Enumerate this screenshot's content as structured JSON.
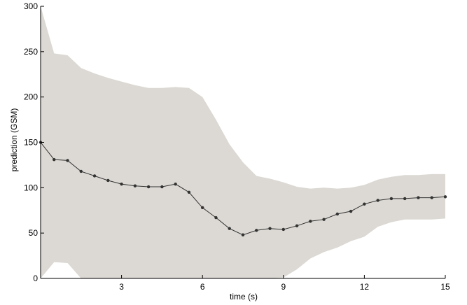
{
  "chart_data": {
    "type": "line",
    "xlabel": "time (s)",
    "ylabel": "prediction (GSM)",
    "xlim": [
      0,
      15
    ],
    "ylim": [
      0,
      300
    ],
    "xticks": [
      3,
      6,
      9,
      12,
      15
    ],
    "yticks": [
      0,
      50,
      100,
      150,
      200,
      250,
      300
    ],
    "grid": false,
    "colors": {
      "band": "#dcd9d4",
      "line": "#333333",
      "axis": "#000000"
    },
    "series": [
      {
        "x": [
          0,
          0.5,
          1,
          1.5,
          2,
          2.5,
          3,
          3.5,
          4,
          4.5,
          5,
          5.5,
          6,
          6.5,
          7,
          7.5,
          8,
          8.5,
          9,
          9.5,
          10,
          10.5,
          11,
          11.5,
          12,
          12.5,
          13,
          13.5,
          14,
          14.5,
          15
        ],
        "values": [
          150,
          131,
          130,
          118,
          113,
          108,
          104,
          102,
          101,
          101,
          104,
          95,
          78,
          67,
          55,
          48,
          53,
          55,
          54,
          58,
          63,
          65,
          71,
          74,
          82,
          86,
          88,
          88,
          89,
          89,
          90
        ]
      }
    ],
    "band": {
      "x": [
        0,
        0.5,
        1,
        1.5,
        2,
        2.5,
        3,
        3.5,
        4,
        4.5,
        5,
        5.5,
        6,
        6.5,
        7,
        7.5,
        8,
        8.5,
        9,
        9.5,
        10,
        10.5,
        11,
        11.5,
        12,
        12.5,
        13,
        13.5,
        14,
        14.5,
        15
      ],
      "upper": [
        300,
        248,
        246,
        232,
        226,
        221,
        217,
        213,
        210,
        210,
        211,
        210,
        200,
        175,
        148,
        128,
        113,
        110,
        106,
        101,
        99,
        100,
        99,
        100,
        103,
        109,
        112,
        114,
        114,
        115,
        115
      ],
      "lower": [
        0,
        18,
        17,
        0,
        0,
        0,
        0,
        0,
        0,
        0,
        0,
        0,
        0,
        0,
        0,
        0,
        0,
        0,
        1,
        10,
        22,
        29,
        34,
        41,
        46,
        57,
        62,
        65,
        65,
        65,
        66
      ]
    }
  }
}
